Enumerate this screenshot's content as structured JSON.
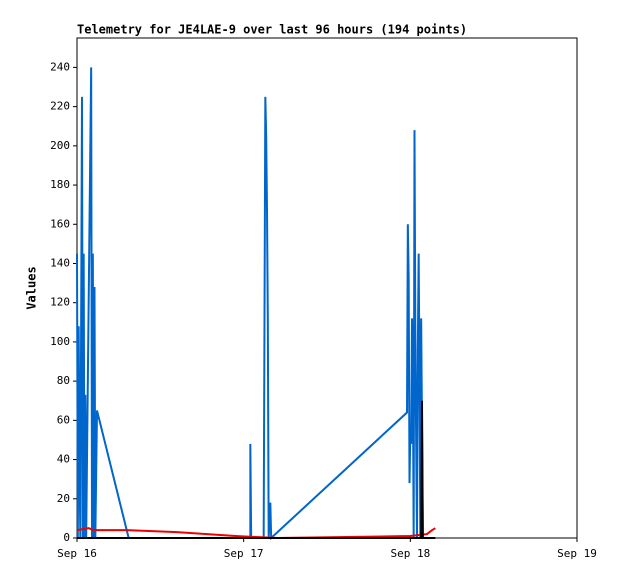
{
  "chart_data": {
    "type": "line",
    "title": "Telemetry for JE4LAE-9 over last 96 hours (194 points)",
    "ylabel": "Values",
    "xlim": [
      0,
      3
    ],
    "xticks": [
      {
        "value": 0,
        "label": "Sep 16"
      },
      {
        "value": 1,
        "label": "Sep 17"
      },
      {
        "value": 2,
        "label": "Sep 18"
      },
      {
        "value": 3,
        "label": "Sep 19"
      }
    ],
    "ylim": [
      0,
      255
    ],
    "yticks": [
      0,
      20,
      40,
      60,
      80,
      100,
      120,
      140,
      160,
      180,
      200,
      220,
      240
    ],
    "series": [
      {
        "color": "#0066cc",
        "x": [
          0,
          0.005,
          0.01,
          0.015,
          0.02,
          0.03,
          0.035,
          0.04,
          0.045,
          0.05,
          0.055,
          0.085,
          0.09,
          0.095,
          0.1,
          0.105,
          0.11,
          0.12,
          0.31,
          1.04,
          1.04,
          1.045,
          1.12,
          1.125,
          1.13,
          1.135,
          1.14,
          1.145,
          1.15,
          1.16,
          1.165,
          1.98,
          1.985,
          1.99,
          1.995,
          2.0,
          2.005,
          2.01,
          2.015,
          2.02,
          2.025,
          2.03,
          2.035,
          2.04,
          2.045,
          2.05,
          2.055,
          2.06,
          2.065,
          2.07,
          2.075
        ],
        "values": [
          145,
          0,
          108,
          37,
          0,
          225,
          0,
          145,
          0,
          73,
          0,
          240,
          0,
          145,
          0,
          128,
          0,
          65,
          0,
          0,
          48,
          0,
          0,
          112,
          225,
          205,
          168,
          110,
          0,
          18,
          0,
          64,
          160,
          133,
          28,
          55,
          48,
          112,
          88,
          0,
          208,
          105,
          48,
          0,
          97,
          145,
          80,
          0,
          112,
          56,
          0
        ]
      },
      {
        "color": "#ee0000",
        "x": [
          0,
          0.07,
          0.1,
          0.3,
          0.6,
          0.95,
          1.2,
          2.0,
          2.1,
          2.13,
          2.15
        ],
        "values": [
          4,
          5,
          4,
          4,
          3,
          1,
          0,
          1,
          2,
          4,
          5
        ]
      },
      {
        "color": "#000000",
        "x": [
          0,
          1.0,
          2.0,
          2.065,
          2.07,
          2.075,
          2.1,
          2.15
        ],
        "values": [
          0,
          0,
          0,
          0,
          70,
          0,
          0,
          0
        ]
      }
    ]
  }
}
